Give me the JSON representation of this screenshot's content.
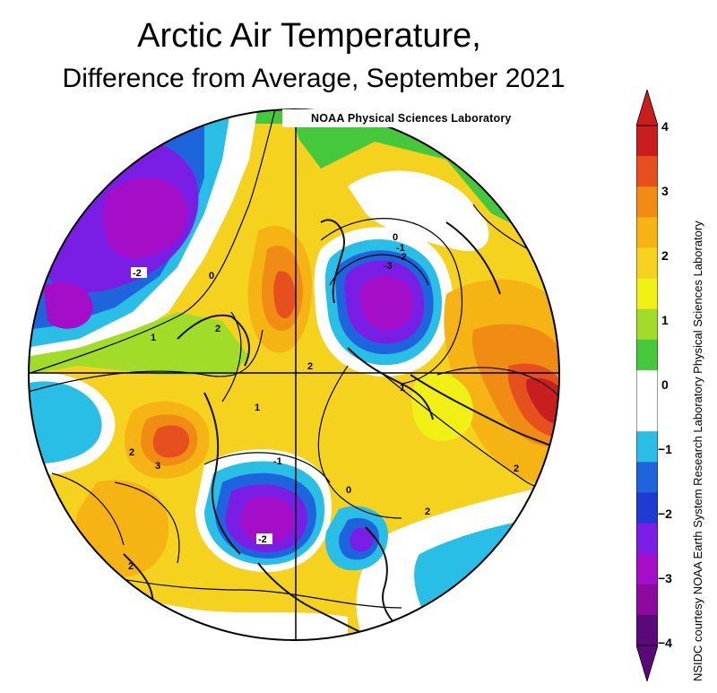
{
  "title": {
    "line1": "Arctic Air Temperature,",
    "line2": "Difference from Average, September 2021"
  },
  "map": {
    "lab_label": "NOAA Physical Sciences Laboratory",
    "contour_labels": [
      "-2",
      "0",
      "2",
      "1",
      "2",
      "0",
      "-1",
      "-2",
      "-3",
      "2",
      "1",
      "1",
      "3",
      "-1",
      "0",
      "-2",
      "2",
      "2",
      "2"
    ],
    "colors": {
      "c_n4": "#5a0a78",
      "c_n3": "#a40ec8",
      "c_n2": "#7a1ee6",
      "c_n1": "#1e64dc",
      "c_n05": "#28bee6",
      "c_0": "#ffffff",
      "c_05": "#46c83c",
      "c_1": "#a0dc28",
      "c_15": "#f0f014",
      "c_2": "#f5d21e",
      "c_25": "#f5b414",
      "c_3": "#f08c14",
      "c_35": "#e6501e",
      "c_4": "#c81e1e"
    }
  },
  "colorbar": {
    "ticks": [
      "4",
      "3",
      "2",
      "1",
      "0",
      "−1",
      "−2",
      "−3",
      "−4"
    ],
    "colors": [
      "#c81e1e",
      "#e6501e",
      "#f08c14",
      "#f5b414",
      "#f5d21e",
      "#f0f014",
      "#a0dc28",
      "#46c83c",
      "#ffffff",
      "#ffffff",
      "#28bee6",
      "#1e64dc",
      "#1e3cd2",
      "#7a1ee6",
      "#a40ec8",
      "#8c0aa0",
      "#5a0a78"
    ]
  },
  "credit": "NSIDC courtesy NOAA Earth System Research Laboratory Physical Sciences Laboratory"
}
